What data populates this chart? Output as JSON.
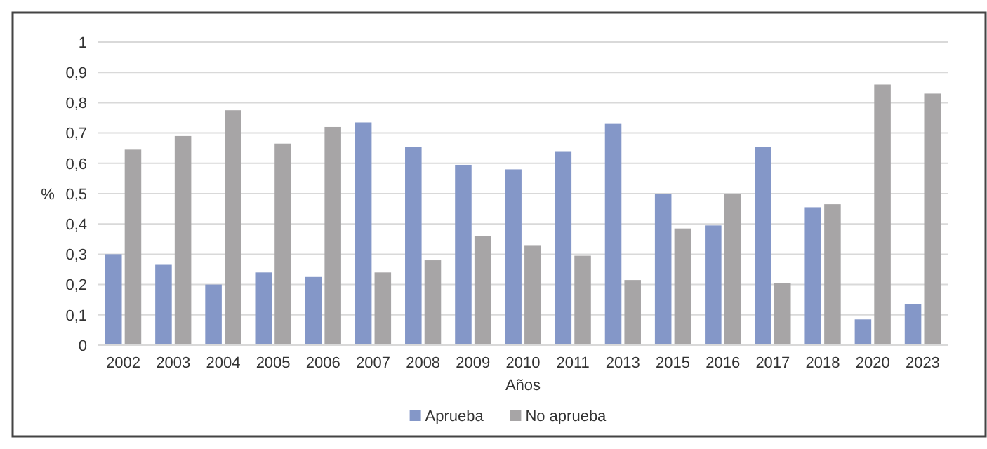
{
  "chart_data": {
    "type": "bar",
    "xlabel": "Años",
    "ylabel": "%",
    "categories": [
      "2002",
      "2003",
      "2004",
      "2005",
      "2006",
      "2007",
      "2008",
      "2009",
      "2010",
      "2011",
      "2013",
      "2015",
      "2016",
      "2017",
      "2018",
      "2020",
      "2023"
    ],
    "series": [
      {
        "name": "Aprueba",
        "color": "#8497c8",
        "values": [
          0.3,
          0.265,
          0.2,
          0.24,
          0.225,
          0.735,
          0.655,
          0.595,
          0.58,
          0.64,
          0.73,
          0.5,
          0.395,
          0.655,
          0.455,
          0.085,
          0.135
        ]
      },
      {
        "name": "No aprueba",
        "color": "#a7a5a6",
        "values": [
          0.645,
          0.69,
          0.775,
          0.665,
          0.72,
          0.24,
          0.28,
          0.36,
          0.33,
          0.295,
          0.215,
          0.385,
          0.5,
          0.205,
          0.465,
          0.86,
          0.83
        ]
      }
    ],
    "ylim": [
      0,
      1
    ],
    "yticks": [
      {
        "value": 0,
        "label": "0"
      },
      {
        "value": 0.1,
        "label": "0,1"
      },
      {
        "value": 0.2,
        "label": "0,2"
      },
      {
        "value": 0.3,
        "label": "0,3"
      },
      {
        "value": 0.4,
        "label": "0,4"
      },
      {
        "value": 0.5,
        "label": "0,5"
      },
      {
        "value": 0.6,
        "label": "0,6"
      },
      {
        "value": 0.7,
        "label": "0,7"
      },
      {
        "value": 0.8,
        "label": "0,8"
      },
      {
        "value": 0.9,
        "label": "0,9"
      },
      {
        "value": 1,
        "label": "1"
      }
    ],
    "grid": "y",
    "legend": "bottom"
  }
}
